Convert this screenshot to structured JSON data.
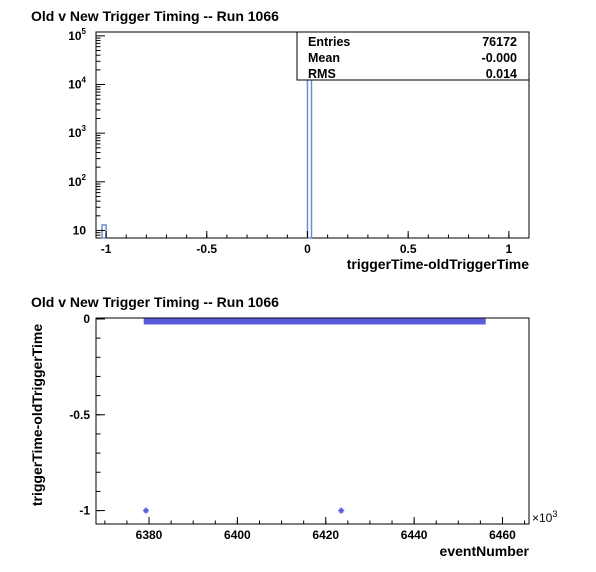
{
  "chart_data": [
    {
      "type": "bar",
      "title": "Old v New Trigger Timing -- Run 1066",
      "xlabel": "triggerTime-oldTriggerTime",
      "ylabel": "",
      "y_scale": "log",
      "xlim": [
        -1.05,
        1.1
      ],
      "ylim": [
        7,
        120000
      ],
      "xticks": [
        -1,
        -0.5,
        0,
        0.5,
        1
      ],
      "xtick_labels": [
        "-1",
        "-0.5",
        "0",
        "0.5",
        "1"
      ],
      "yticks": [
        10,
        100,
        1000,
        10000,
        100000
      ],
      "ytick_bases": [
        "10",
        "10",
        "10",
        "10",
        "10"
      ],
      "ytick_exponents": [
        "",
        "2",
        "3",
        "4",
        "5"
      ],
      "bin_width": 0.02,
      "bins": [
        {
          "x": -1.01,
          "value": 13
        },
        {
          "x": 0.01,
          "value": 76159
        }
      ],
      "bar_color": "#6a8fd0",
      "legend_position": "top-right",
      "stats": [
        {
          "label": "Entries",
          "value": "76172"
        },
        {
          "label": "Mean",
          "value": "-0.000"
        },
        {
          "label": "RMS",
          "value": "0.014"
        }
      ]
    },
    {
      "type": "scatter",
      "title": "Old v New Trigger Timing -- Run 1066",
      "xlabel": "eventNumber",
      "ylabel": "triggerTime-oldTriggerTime",
      "xlim": [
        6368,
        6466
      ],
      "ylim": [
        -1.07,
        0.005
      ],
      "xticks": [
        6380,
        6400,
        6420,
        6440,
        6460
      ],
      "xtick_labels": [
        "6380",
        "6400",
        "6420",
        "6440",
        "6460"
      ],
      "yticks": [
        0,
        -0.5,
        -1
      ],
      "ytick_labels": [
        "0",
        "-0.5",
        "-1"
      ],
      "x_multiplier_base": "×10",
      "x_multiplier_exp": "3",
      "band": {
        "x_start": 6378.8,
        "x_end": 6456.2,
        "y": 0
      },
      "points": [
        {
          "x": 6379.3,
          "y": -1
        },
        {
          "x": 6423.5,
          "y": -1
        }
      ],
      "marker_color": "#5a5adc"
    }
  ]
}
